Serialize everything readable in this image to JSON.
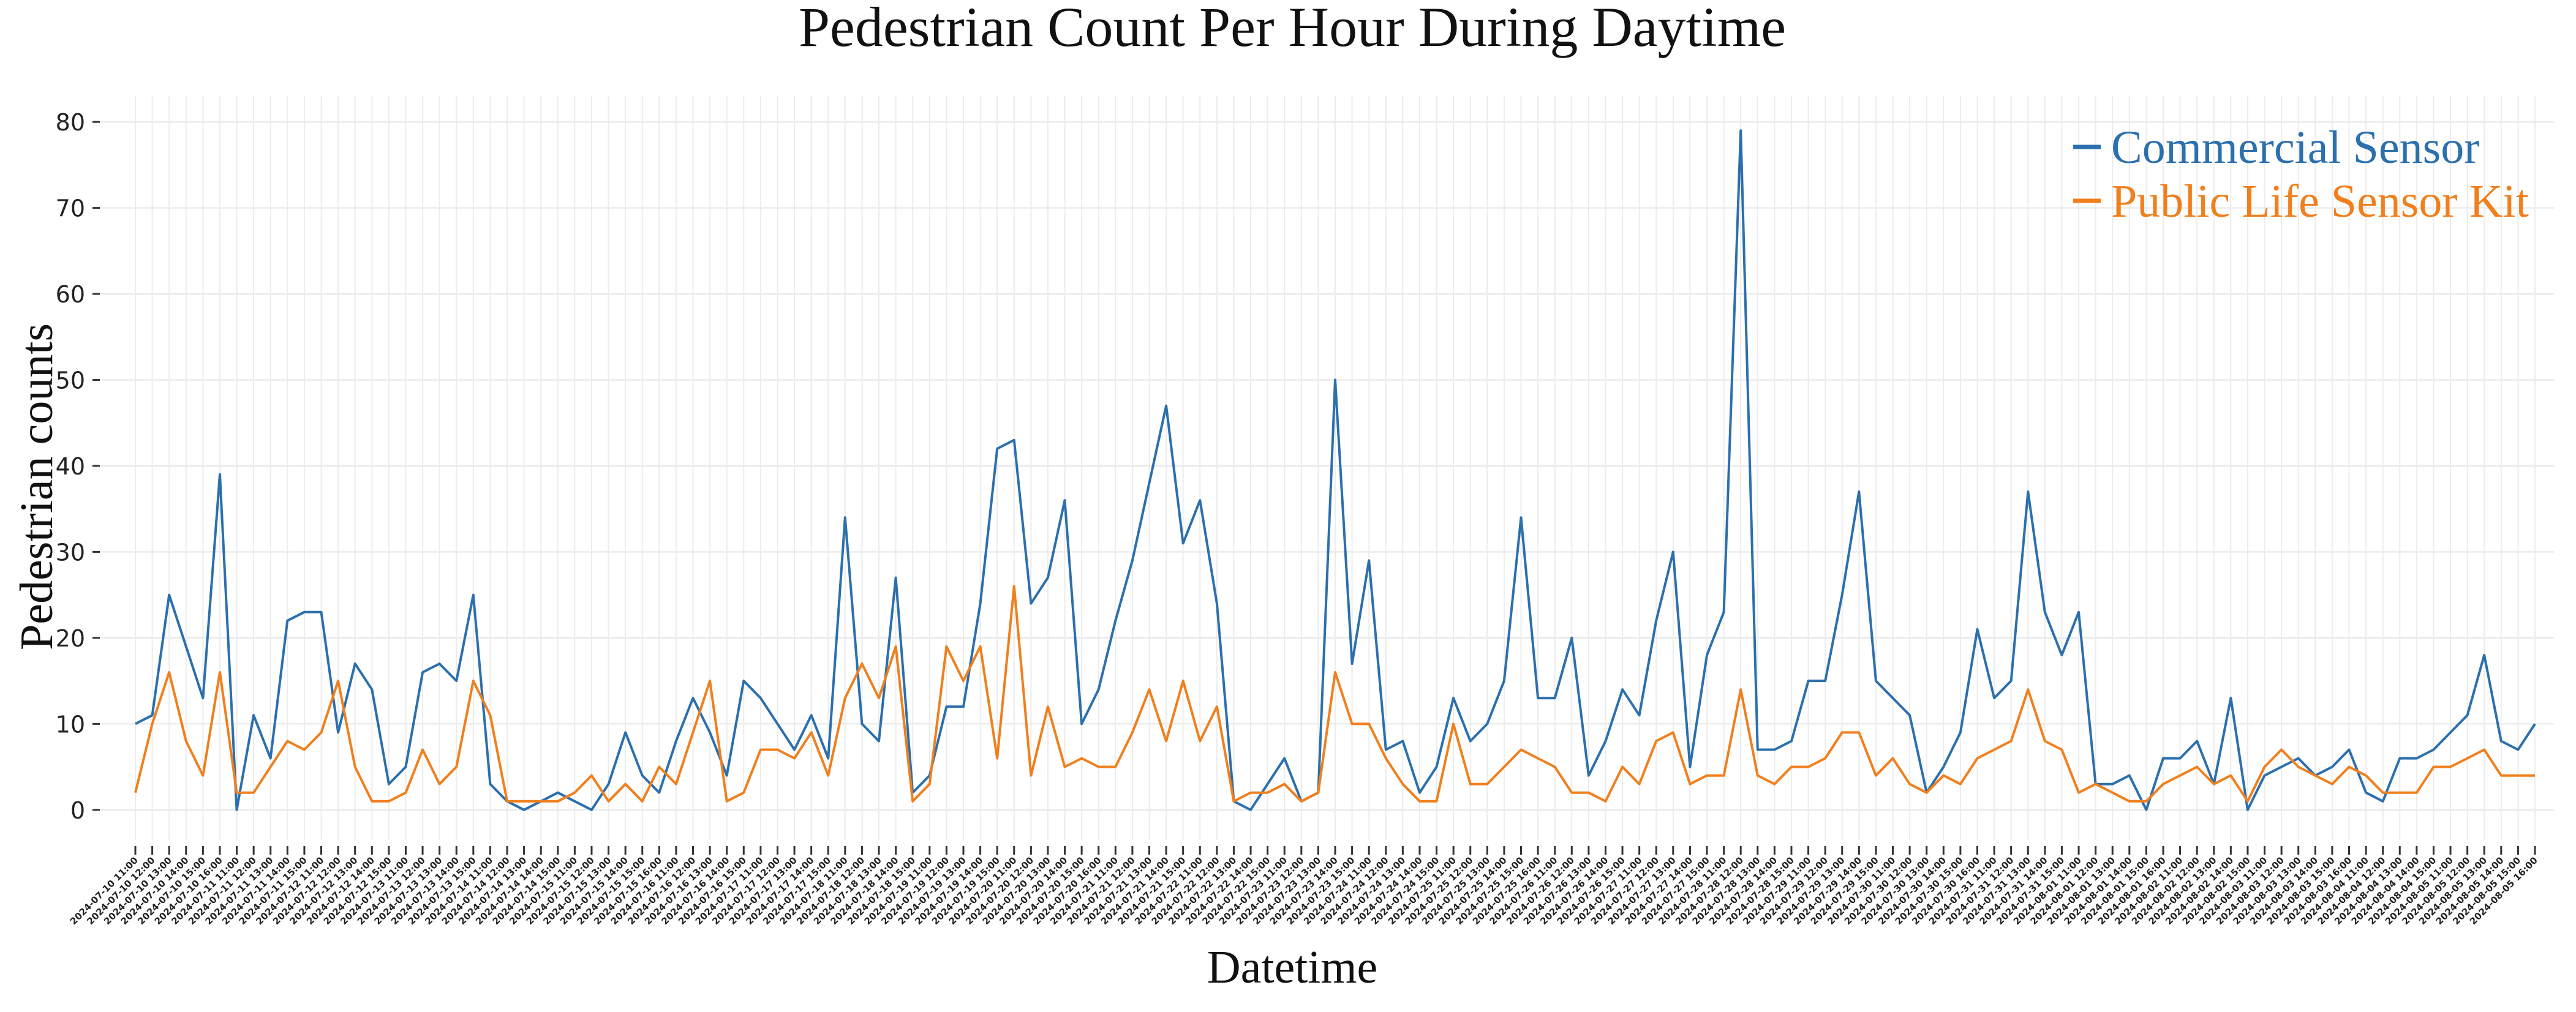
{
  "chart_data": {
    "type": "line",
    "title": "Pedestrian Count Per Hour During Daytime",
    "x_label": "Datetime",
    "y_label": "Pedestrian counts",
    "categories": [
      "2024-07-10 11:00",
      "2024-07-10 12:00",
      "2024-07-10 13:00",
      "2024-07-10 14:00",
      "2024-07-10 15:00",
      "2024-07-10 16:00",
      "2024-07-11 11:00",
      "2024-07-11 12:00",
      "2024-07-11 13:00",
      "2024-07-11 14:00",
      "2024-07-11 15:00",
      "2024-07-12 11:00",
      "2024-07-12 12:00",
      "2024-07-12 13:00",
      "2024-07-12 14:00",
      "2024-07-12 15:00",
      "2024-07-13 11:00",
      "2024-07-13 12:00",
      "2024-07-13 13:00",
      "2024-07-13 14:00",
      "2024-07-13 15:00",
      "2024-07-14 11:00",
      "2024-07-14 12:00",
      "2024-07-14 13:00",
      "2024-07-14 14:00",
      "2024-07-14 15:00",
      "2024-07-15 11:00",
      "2024-07-15 12:00",
      "2024-07-15 13:00",
      "2024-07-15 14:00",
      "2024-07-15 15:00",
      "2024-07-15 16:00",
      "2024-07-16 11:00",
      "2024-07-16 12:00",
      "2024-07-16 13:00",
      "2024-07-16 14:00",
      "2024-07-16 15:00",
      "2024-07-17 11:00",
      "2024-07-17 12:00",
      "2024-07-17 13:00",
      "2024-07-17 14:00",
      "2024-07-17 15:00",
      "2024-07-18 11:00",
      "2024-07-18 12:00",
      "2024-07-18 13:00",
      "2024-07-18 14:00",
      "2024-07-18 15:00",
      "2024-07-19 11:00",
      "2024-07-19 12:00",
      "2024-07-19 13:00",
      "2024-07-19 14:00",
      "2024-07-19 15:00",
      "2024-07-20 11:00",
      "2024-07-20 12:00",
      "2024-07-20 13:00",
      "2024-07-20 14:00",
      "2024-07-20 15:00",
      "2024-07-20 16:00",
      "2024-07-21 11:00",
      "2024-07-21 12:00",
      "2024-07-21 13:00",
      "2024-07-21 14:00",
      "2024-07-21 15:00",
      "2024-07-22 11:00",
      "2024-07-22 12:00",
      "2024-07-22 13:00",
      "2024-07-22 14:00",
      "2024-07-22 15:00",
      "2024-07-23 11:00",
      "2024-07-23 12:00",
      "2024-07-23 13:00",
      "2024-07-23 14:00",
      "2024-07-23 15:00",
      "2024-07-24 11:00",
      "2024-07-24 12:00",
      "2024-07-24 13:00",
      "2024-07-24 14:00",
      "2024-07-24 15:00",
      "2024-07-25 11:00",
      "2024-07-25 12:00",
      "2024-07-25 13:00",
      "2024-07-25 14:00",
      "2024-07-25 15:00",
      "2024-07-25 16:00",
      "2024-07-26 11:00",
      "2024-07-26 12:00",
      "2024-07-26 13:00",
      "2024-07-26 14:00",
      "2024-07-26 15:00",
      "2024-07-27 11:00",
      "2024-07-27 12:00",
      "2024-07-27 13:00",
      "2024-07-27 14:00",
      "2024-07-27 15:00",
      "2024-07-28 11:00",
      "2024-07-28 12:00",
      "2024-07-28 13:00",
      "2024-07-28 14:00",
      "2024-07-28 15:00",
      "2024-07-29 11:00",
      "2024-07-29 12:00",
      "2024-07-29 13:00",
      "2024-07-29 14:00",
      "2024-07-29 15:00",
      "2024-07-30 11:00",
      "2024-07-30 12:00",
      "2024-07-30 13:00",
      "2024-07-30 14:00",
      "2024-07-30 15:00",
      "2024-07-30 16:00",
      "2024-07-31 11:00",
      "2024-07-31 12:00",
      "2024-07-31 13:00",
      "2024-07-31 14:00",
      "2024-07-31 15:00",
      "2024-08-01 11:00",
      "2024-08-01 12:00",
      "2024-08-01 13:00",
      "2024-08-01 14:00",
      "2024-08-01 15:00",
      "2024-08-01 16:00",
      "2024-08-02 11:00",
      "2024-08-02 12:00",
      "2024-08-02 13:00",
      "2024-08-02 14:00",
      "2024-08-02 15:00",
      "2024-08-03 11:00",
      "2024-08-03 12:00",
      "2024-08-03 13:00",
      "2024-08-03 14:00",
      "2024-08-03 15:00",
      "2024-08-03 16:00",
      "2024-08-04 11:00",
      "2024-08-04 12:00",
      "2024-08-04 13:00",
      "2024-08-04 14:00",
      "2024-08-04 15:00",
      "2024-08-05 11:00",
      "2024-08-05 12:00",
      "2024-08-05 13:00",
      "2024-08-05 14:00",
      "2024-08-05 15:00",
      "2024-08-05 16:00"
    ],
    "series": [
      {
        "name": "Commercial Sensor",
        "color": "#2c6fad",
        "values": [
          10,
          11,
          25,
          19,
          13,
          39,
          0,
          11,
          6,
          22,
          23,
          23,
          9,
          17,
          14,
          3,
          5,
          16,
          17,
          15,
          25,
          3,
          1,
          0,
          1,
          2,
          1,
          0,
          3,
          9,
          4,
          2,
          8,
          13,
          9,
          4,
          15,
          13,
          10,
          7,
          11,
          6,
          34,
          10,
          8,
          27,
          2,
          4,
          12,
          12,
          24,
          42,
          43,
          24,
          27,
          36,
          10,
          14,
          22,
          29,
          38,
          47,
          31,
          36,
          24,
          1,
          0,
          3,
          6,
          1,
          2,
          50,
          17,
          29,
          7,
          8,
          2,
          5,
          13,
          8,
          10,
          15,
          34,
          13,
          13,
          20,
          4,
          8,
          14,
          11,
          22,
          30,
          5,
          18,
          23,
          79,
          7,
          7,
          8,
          15,
          15,
          25,
          37,
          15,
          13,
          11,
          2,
          5,
          9,
          21,
          13,
          15,
          37,
          23,
          18,
          23,
          3,
          3,
          4,
          0,
          6,
          6,
          8,
          3,
          13,
          0,
          4,
          5,
          6,
          4,
          5,
          7,
          2,
          1,
          6,
          6,
          7,
          9,
          11,
          18,
          8,
          7,
          10
        ]
      },
      {
        "name": "Public Life Sensor Kit",
        "color": "#f07f1d",
        "values": [
          2,
          10,
          16,
          8,
          4,
          16,
          2,
          2,
          5,
          8,
          7,
          9,
          15,
          5,
          1,
          1,
          2,
          7,
          3,
          5,
          15,
          11,
          1,
          1,
          1,
          1,
          2,
          4,
          1,
          3,
          1,
          5,
          3,
          9,
          15,
          1,
          2,
          7,
          7,
          6,
          9,
          4,
          13,
          17,
          13,
          19,
          1,
          3,
          19,
          15,
          19,
          6,
          26,
          4,
          12,
          5,
          6,
          5,
          5,
          9,
          14,
          8,
          15,
          8,
          12,
          1,
          2,
          2,
          3,
          1,
          2,
          16,
          10,
          10,
          6,
          3,
          1,
          1,
          10,
          3,
          3,
          5,
          7,
          6,
          5,
          2,
          2,
          1,
          5,
          3,
          8,
          9,
          3,
          4,
          4,
          14,
          4,
          3,
          5,
          5,
          6,
          9,
          9,
          4,
          6,
          3,
          2,
          4,
          3,
          6,
          7,
          8,
          14,
          8,
          7,
          2,
          3,
          2,
          1,
          1,
          3,
          4,
          5,
          3,
          4,
          1,
          5,
          7,
          5,
          4,
          3,
          5,
          4,
          2,
          2,
          2,
          5,
          5,
          6,
          7,
          4,
          4,
          4
        ]
      }
    ],
    "ylim": [
      -3.5,
      83
    ],
    "yticks": [
      0,
      10,
      20,
      30,
      40,
      50,
      60,
      70,
      80
    ],
    "grid": true,
    "legend": "upper right"
  }
}
